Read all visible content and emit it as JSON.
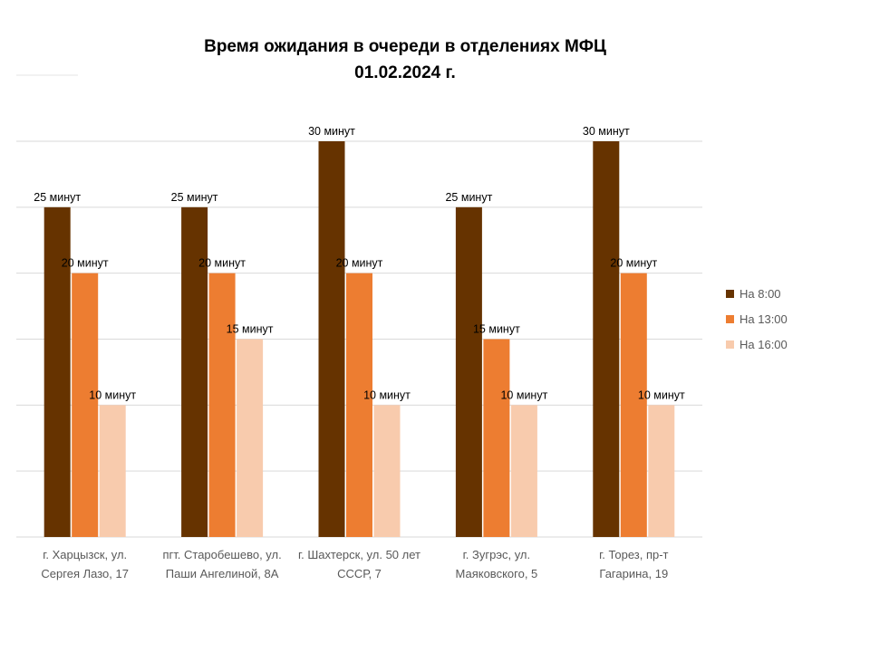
{
  "chart_data": {
    "type": "bar",
    "title": "Время ожидания в очереди в отделениях МФЦ",
    "subtitle": "01.02.2024 г.",
    "categories": [
      [
        "г. Харцызск, ул.",
        "Сергея Лазо, 17"
      ],
      [
        "пгт. Старобешево, ул.",
        "Паши Ангелиной, 8А"
      ],
      [
        "г. Шахтерск, ул. 50 лет",
        "СССР, 7"
      ],
      [
        "г. Зугрэс, ул.",
        "Маяковского, 5"
      ],
      [
        "г. Торез, пр-т",
        "Гагарина, 19"
      ]
    ],
    "series": [
      {
        "name": "На 8:00",
        "color": "#663300",
        "values": [
          25,
          25,
          30,
          25,
          30
        ],
        "labels": [
          "25 минут",
          "25 минут",
          "30 минут",
          "25 минут",
          "30 минут"
        ]
      },
      {
        "name": "На 13:00",
        "color": "#ED7D31",
        "values": [
          20,
          20,
          20,
          15,
          20
        ],
        "labels": [
          "20 минут",
          "20 минут",
          "20 минут",
          "15 минут",
          "20 минут"
        ]
      },
      {
        "name": "На 16:00",
        "color": "#F8CBAD",
        "values": [
          10,
          15,
          10,
          10,
          10
        ],
        "labels": [
          "10 минут",
          "15 минут",
          "10 минут",
          "10 минут",
          "10 минут"
        ]
      }
    ],
    "ylim": [
      0,
      30
    ],
    "y_gridline_step": 5,
    "grid": true,
    "legend_position": "right",
    "gridline_color": "#D9D9D9"
  }
}
